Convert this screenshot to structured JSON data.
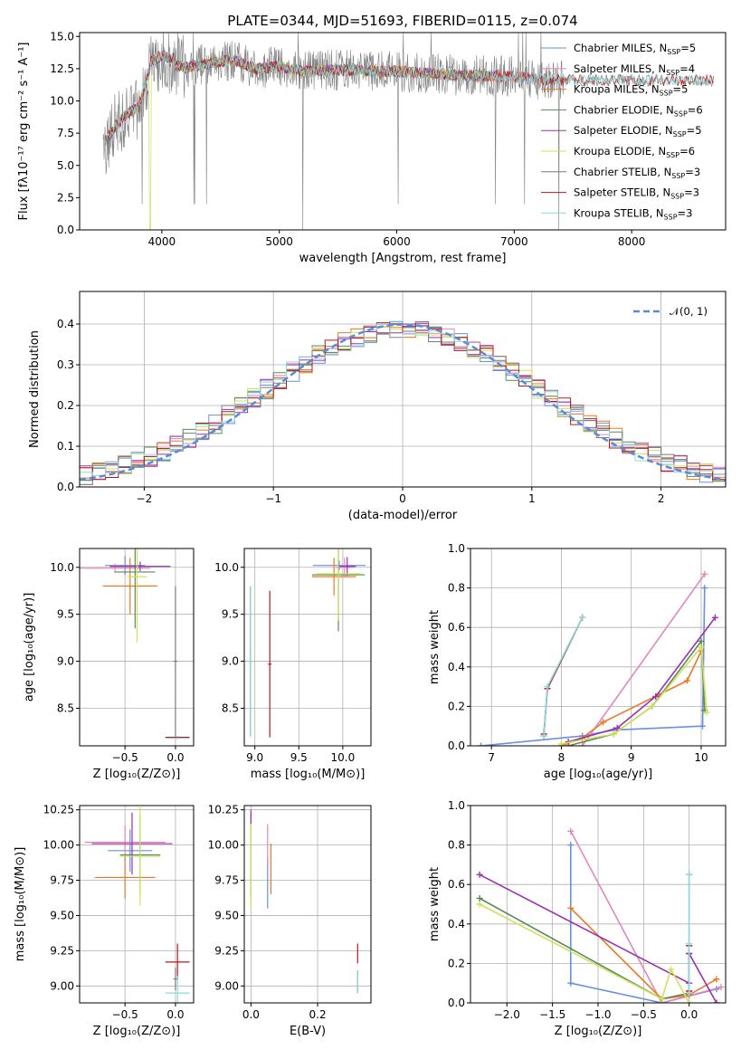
{
  "colors": {
    "chabrier_miles": "#6a8fdf",
    "salpeter_miles": "#e287bd",
    "kroupa_miles": "#e87a27",
    "chabrier_elodie": "#5a8a5a",
    "salpeter_elodie": "#9b30b0",
    "kroupa_elodie": "#cfe05a",
    "chabrier_stelib": "#7a7a7a",
    "salpeter_stelib": "#b51a1a",
    "kroupa_stelib": "#8ed9dd",
    "normal_curve": "#5b8ad8",
    "data_spectrum": "#808080"
  },
  "legend_entries": [
    {
      "base": "Chabrier MILES, N",
      "sub": "SSP",
      "tail": "=5",
      "color_key": "chabrier_miles"
    },
    {
      "base": "Salpeter MILES, N",
      "sub": "SSP",
      "tail": "=4",
      "color_key": "salpeter_miles"
    },
    {
      "base": "Kroupa MILES, N",
      "sub": "SSP",
      "tail": "=5",
      "color_key": "kroupa_miles"
    },
    {
      "base": "Chabrier ELODIE, N",
      "sub": "SSP",
      "tail": "=6",
      "color_key": "chabrier_elodie"
    },
    {
      "base": "Salpeter ELODIE, N",
      "sub": "SSP",
      "tail": "=5",
      "color_key": "salpeter_elodie"
    },
    {
      "base": "Kroupa ELODIE, N",
      "sub": "SSP",
      "tail": "=6",
      "color_key": "kroupa_elodie"
    },
    {
      "base": "Chabrier STELIB, N",
      "sub": "SSP",
      "tail": "=3",
      "color_key": "chabrier_stelib"
    },
    {
      "base": "Salpeter STELIB, N",
      "sub": "SSP",
      "tail": "=3",
      "color_key": "salpeter_stelib"
    },
    {
      "base": "Kroupa STELIB, N",
      "sub": "SSP",
      "tail": "=3",
      "color_key": "kroupa_stelib"
    }
  ],
  "chart_data": [
    {
      "id": "spectrum",
      "type": "line",
      "title": "PLATE=0344, MJD=51693, FIBERID=0115, z=0.074",
      "xlabel": "wavelength [Angstrom, rest frame]",
      "ylabel": "Flux [fλ10⁻¹⁷ erg cm⁻² s⁻¹ A⁻¹]",
      "xlim": [
        3300,
        8800
      ],
      "ylim": [
        0,
        15.3
      ],
      "xticks": [
        4000,
        5000,
        6000,
        7000,
        8000
      ],
      "xtick_labels": [
        "4000",
        "5000",
        "6000",
        "7000",
        "8000"
      ],
      "yticks": [
        0,
        2.5,
        5,
        7.5,
        10,
        12.5,
        15
      ],
      "ytick_labels": [
        "0.0",
        "2.5",
        "5.0",
        "7.5",
        "10.0",
        "12.5",
        "15.0"
      ],
      "grid": false,
      "legend": "right",
      "model_continuum": {
        "x": [
          3500,
          3600,
          3700,
          3800,
          3900,
          4000,
          4200,
          4400,
          4600,
          4800,
          5000,
          5200,
          5500,
          6000,
          6500,
          7000,
          7300
        ],
        "y": [
          6.5,
          8.0,
          9.0,
          9.5,
          12.5,
          13.0,
          12.6,
          12.9,
          13.2,
          12.5,
          12.7,
          12.3,
          12.4,
          12.3,
          12.0,
          11.9,
          11.6
        ]
      }
    },
    {
      "id": "residuals",
      "type": "histogram",
      "xlabel": "(data-model)/error",
      "ylabel": "Normed distribution",
      "xlim": [
        -2.5,
        2.5
      ],
      "ylim": [
        0,
        0.48
      ],
      "xticks": [
        -2,
        -1,
        0,
        1,
        2
      ],
      "xtick_labels": [
        "−2",
        "−1",
        "0",
        "1",
        "2"
      ],
      "yticks": [
        0,
        0.1,
        0.2,
        0.3,
        0.4
      ],
      "ytick_labels": [
        "0.0",
        "0.1",
        "0.2",
        "0.3",
        "0.4"
      ],
      "grid": true,
      "legend": "top-right",
      "legend_label": "𝒩(0, 1)",
      "normal_curve": {
        "mean": 0,
        "sigma": 1
      }
    },
    {
      "id": "age_vs_Z",
      "type": "scatter",
      "xlabel": "Z [log₁₀(Z/Z⊙)]",
      "ylabel": "age  [log₁₀(age/yr)]",
      "xlim": [
        -0.95,
        0.18
      ],
      "ylim": [
        8.1,
        10.2
      ],
      "xticks": [
        -0.5,
        0.0
      ],
      "xtick_labels": [
        "−0.5",
        "0.0"
      ],
      "yticks": [
        8.5,
        9.0,
        9.5,
        10.0
      ],
      "ytick_labels": [
        "8.5",
        "9.0",
        "9.5",
        "10.0"
      ],
      "grid": true,
      "points": [
        {
          "c": "chabrier_miles",
          "x": -0.5,
          "xe": 0.2,
          "y": 10.02,
          "ye": 0.1
        },
        {
          "c": "salpeter_miles",
          "x": -0.6,
          "xe": 0.35,
          "y": 9.99,
          "ye": 0.05
        },
        {
          "c": "kroupa_miles",
          "x": -0.45,
          "xe": 0.27,
          "y": 9.8,
          "ye": 0.3
        },
        {
          "c": "chabrier_elodie",
          "x": -0.4,
          "xe": 0.2,
          "y": 9.95,
          "ye": 0.6
        },
        {
          "c": "salpeter_elodie",
          "x": -0.35,
          "xe": 0.3,
          "y": 10.01,
          "ye": 0.05
        },
        {
          "c": "kroupa_elodie",
          "x": -0.38,
          "xe": 0.1,
          "y": 9.9,
          "ye": 0.7
        },
        {
          "c": "chabrier_stelib",
          "x": 0.0,
          "xe": 0.02,
          "y": 9.0,
          "ye": 0.8
        },
        {
          "c": "salpeter_stelib",
          "x": 0.02,
          "xe": 0.12,
          "y": 8.19,
          "ye": 0.01
        },
        {
          "c": "kroupa_stelib",
          "x": 0.02,
          "xe": 0.12,
          "y": 8.18,
          "ye": 0.01
        }
      ]
    },
    {
      "id": "age_vs_mass",
      "type": "scatter",
      "xlabel": "mass [log₁₀(M/M⊙)]",
      "ylabel": "",
      "xlim": [
        8.88,
        10.32
      ],
      "ylim": [
        8.1,
        10.2
      ],
      "xticks": [
        9.0,
        9.5,
        10.0
      ],
      "xtick_labels": [
        "9.0",
        "9.5",
        "10.0"
      ],
      "yticks": [
        8.5,
        9.0,
        9.5,
        10.0
      ],
      "ytick_labels": [
        "8.5",
        "9.0",
        "9.5",
        "10.0"
      ],
      "grid": true,
      "points": [
        {
          "c": "chabrier_miles",
          "x": 9.96,
          "xe": 0.3,
          "y": 10.02,
          "ye": 0.05
        },
        {
          "c": "salpeter_miles",
          "x": 10.02,
          "xe": 0.1,
          "y": 10.0,
          "ye": 0.1
        },
        {
          "c": "kroupa_miles",
          "x": 9.9,
          "xe": 0.25,
          "y": 9.9,
          "ye": 0.2
        },
        {
          "c": "chabrier_elodie",
          "x": 9.95,
          "xe": 0.3,
          "y": 9.92,
          "ye": 0.6
        },
        {
          "c": "salpeter_elodie",
          "x": 10.05,
          "xe": 0.1,
          "y": 10.01,
          "ye": 0.1
        },
        {
          "c": "kroupa_elodie",
          "x": 9.95,
          "xe": 0.25,
          "y": 9.93,
          "ye": 0.5
        },
        {
          "c": "chabrier_stelib",
          "x": 8.95,
          "xe": 0.02,
          "y": 9.0,
          "ye": 0.8
        },
        {
          "c": "salpeter_stelib",
          "x": 9.17,
          "xe": 0.02,
          "y": 8.97,
          "ye": 0.78
        },
        {
          "c": "kroupa_stelib",
          "x": 8.95,
          "xe": 0.02,
          "y": 9.0,
          "ye": 0.8
        }
      ]
    },
    {
      "id": "weight_vs_age",
      "type": "line",
      "xlabel": "age  [log₁₀(age/yr)]",
      "ylabel": "mass weight",
      "xlim": [
        6.7,
        10.35
      ],
      "ylim": [
        0,
        1.0
      ],
      "xticks": [
        7,
        8,
        9,
        10
      ],
      "xtick_labels": [
        "7",
        "8",
        "9",
        "10"
      ],
      "yticks": [
        0,
        0.2,
        0.4,
        0.6,
        0.8,
        1.0
      ],
      "ytick_labels": [
        "0.0",
        "0.2",
        "0.4",
        "0.6",
        "0.8",
        "1.0"
      ],
      "grid": true,
      "series": [
        {
          "c": "chabrier_miles",
          "x": [
            6.85,
            8.3,
            8.75,
            10.02,
            10.05
          ],
          "y": [
            0.0,
            0.05,
            0.08,
            0.1,
            0.8
          ]
        },
        {
          "c": "salpeter_miles",
          "x": [
            8.3,
            10.05
          ],
          "y": [
            0.0,
            0.87
          ]
        },
        {
          "c": "kroupa_miles",
          "x": [
            8.0,
            8.3,
            8.6,
            9.4,
            9.8,
            10.0
          ],
          "y": [
            0.0,
            0.04,
            0.12,
            0.26,
            0.33,
            0.48
          ]
        },
        {
          "c": "chabrier_elodie",
          "x": [
            8.1,
            8.75,
            9.3,
            10.0,
            10.05
          ],
          "y": [
            0.0,
            0.06,
            0.2,
            0.53,
            0.18
          ]
        },
        {
          "c": "salpeter_elodie",
          "x": [
            8.1,
            8.8,
            9.35,
            10.2
          ],
          "y": [
            0.02,
            0.09,
            0.25,
            0.65
          ]
        },
        {
          "c": "kroupa_elodie",
          "x": [
            8.0,
            8.75,
            9.3,
            10.0,
            10.08
          ],
          "y": [
            0.01,
            0.06,
            0.2,
            0.5,
            0.17
          ]
        },
        {
          "c": "chabrier_stelib",
          "x": [
            7.75,
            7.8,
            8.3
          ],
          "y": [
            0.05,
            0.29,
            0.65
          ]
        },
        {
          "c": "salpeter_stelib",
          "x": [
            7.75,
            7.8,
            8.3
          ],
          "y": [
            0.06,
            0.29,
            0.65
          ]
        },
        {
          "c": "kroupa_stelib",
          "x": [
            7.75,
            7.8,
            8.3
          ],
          "y": [
            0.05,
            0.3,
            0.65
          ]
        }
      ]
    },
    {
      "id": "mass_vs_Z",
      "type": "scatter",
      "xlabel": "Z [log₁₀(Z/Z⊙)]",
      "ylabel": "mass [log₁₀(M/M⊙)]",
      "xlim": [
        -0.95,
        0.18
      ],
      "ylim": [
        8.88,
        10.28
      ],
      "xticks": [
        -0.5,
        0.0
      ],
      "xtick_labels": [
        "−0.5",
        "0.0"
      ],
      "yticks": [
        9.0,
        9.25,
        9.5,
        9.75,
        10.0,
        10.25
      ],
      "ytick_labels": [
        "9.00",
        "9.25",
        "9.50",
        "9.75",
        "10.00",
        "10.25"
      ],
      "grid": true,
      "points": [
        {
          "c": "chabrier_miles",
          "x": -0.45,
          "xe": 0.22,
          "y": 9.96,
          "ye": 0.15
        },
        {
          "c": "salpeter_miles",
          "x": -0.5,
          "xe": 0.4,
          "y": 10.02,
          "ye": 0.12
        },
        {
          "c": "kroupa_miles",
          "x": -0.5,
          "xe": 0.3,
          "y": 9.77,
          "ye": 0.15
        },
        {
          "c": "chabrier_elodie",
          "x": -0.35,
          "xe": 0.2,
          "y": 9.93,
          "ye": 0.28
        },
        {
          "c": "salpeter_elodie",
          "x": -0.43,
          "xe": 0.4,
          "y": 10.01,
          "ye": 0.22
        },
        {
          "c": "kroupa_elodie",
          "x": -0.35,
          "xe": 0.2,
          "y": 9.92,
          "ye": 0.35
        },
        {
          "c": "chabrier_stelib",
          "x": 0.0,
          "xe": 0.02,
          "y": 9.05,
          "ye": 0.08
        },
        {
          "c": "salpeter_stelib",
          "x": 0.02,
          "xe": 0.12,
          "y": 9.17,
          "ye": 0.13
        },
        {
          "c": "kroupa_stelib",
          "x": 0.02,
          "xe": 0.12,
          "y": 8.95,
          "ye": 0.12
        }
      ]
    },
    {
      "id": "mass_vs_ebv",
      "type": "scatter",
      "xlabel": "E(B-V)",
      "ylabel": "",
      "xlim": [
        -0.02,
        0.36
      ],
      "ylim": [
        8.88,
        10.28
      ],
      "xticks": [
        0.0,
        0.2
      ],
      "xtick_labels": [
        "0.0",
        "0.2"
      ],
      "yticks": [
        9.0,
        9.25,
        9.5,
        9.75,
        10.0,
        10.25
      ],
      "ytick_labels": [
        "9.00",
        "9.25",
        "9.50",
        "9.75",
        "10.00",
        "10.25"
      ],
      "grid": true,
      "points": [
        {
          "c": "chabrier_miles",
          "x": 0.05,
          "xe": 0.0,
          "y": 9.73,
          "ye": 0.18
        },
        {
          "c": "salpeter_miles",
          "x": 0.05,
          "xe": 0.0,
          "y": 10.0,
          "ye": 0.15
        },
        {
          "c": "kroupa_miles",
          "x": 0.06,
          "xe": 0.0,
          "y": 9.83,
          "ye": 0.18
        },
        {
          "c": "chabrier_elodie",
          "x": 0.0,
          "xe": 0.0,
          "y": 9.93,
          "ye": 0.3
        },
        {
          "c": "salpeter_elodie",
          "x": 0.0,
          "xe": 0.0,
          "y": 10.2,
          "ye": 0.05
        },
        {
          "c": "kroupa_elodie",
          "x": 0.0,
          "xe": 0.0,
          "y": 9.85,
          "ye": 0.3
        },
        {
          "c": "chabrier_stelib",
          "x": 0.32,
          "xe": 0.0,
          "y": 9.03,
          "ye": 0.08
        },
        {
          "c": "salpeter_stelib",
          "x": 0.32,
          "xe": 0.0,
          "y": 9.23,
          "ye": 0.07
        },
        {
          "c": "kroupa_stelib",
          "x": 0.32,
          "xe": 0.0,
          "y": 9.03,
          "ye": 0.08
        }
      ]
    },
    {
      "id": "weight_vs_Z",
      "type": "line",
      "xlabel": "Z [log₁₀(Z/Z⊙)]",
      "ylabel": "mass weight",
      "xlim": [
        -2.4,
        0.4
      ],
      "ylim": [
        0,
        1.0
      ],
      "xticks": [
        -2.0,
        -1.5,
        -1.0,
        -0.5,
        0.0
      ],
      "xtick_labels": [
        "−2.0",
        "−1.5",
        "−1.0",
        "−0.5",
        "0.0"
      ],
      "yticks": [
        0,
        0.2,
        0.4,
        0.6,
        0.8,
        1.0
      ],
      "ytick_labels": [
        "0.0",
        "0.2",
        "0.4",
        "0.6",
        "0.8",
        "1.0"
      ],
      "grid": true,
      "series": [
        {
          "c": "chabrier_miles",
          "x": [
            -1.3,
            -1.3,
            -0.3,
            0.3
          ],
          "y": [
            0.8,
            0.1,
            0.0,
            0.07
          ]
        },
        {
          "c": "salpeter_miles",
          "x": [
            -1.3,
            -0.3,
            0.35
          ],
          "y": [
            0.87,
            0.0,
            0.08
          ]
        },
        {
          "c": "kroupa_miles",
          "x": [
            -1.3,
            -0.3,
            0.0,
            0.3
          ],
          "y": [
            0.48,
            0.02,
            0.04,
            0.12
          ]
        },
        {
          "c": "chabrier_elodie",
          "x": [
            -2.3,
            -0.3,
            0.0,
            0.0
          ],
          "y": [
            0.53,
            0.02,
            0.05,
            0.25
          ]
        },
        {
          "c": "salpeter_elodie",
          "x": [
            -2.3,
            0.0,
            0.0,
            0.3
          ],
          "y": [
            0.65,
            0.1,
            0.25,
            0.0
          ]
        },
        {
          "c": "kroupa_elodie",
          "x": [
            -2.3,
            -0.3,
            -0.2,
            0.0
          ],
          "y": [
            0.5,
            0.02,
            0.17,
            0.0
          ]
        },
        {
          "c": "chabrier_stelib",
          "x": [
            0.0,
            0.0,
            0.0
          ],
          "y": [
            0.65,
            0.29,
            0.06
          ]
        },
        {
          "c": "salpeter_stelib",
          "x": [
            0.0,
            0.0
          ],
          "y": [
            0.29,
            0.06
          ]
        },
        {
          "c": "kroupa_stelib",
          "x": [
            0.0,
            0.0,
            0.0
          ],
          "y": [
            0.65,
            0.3,
            0.05
          ]
        }
      ]
    }
  ]
}
